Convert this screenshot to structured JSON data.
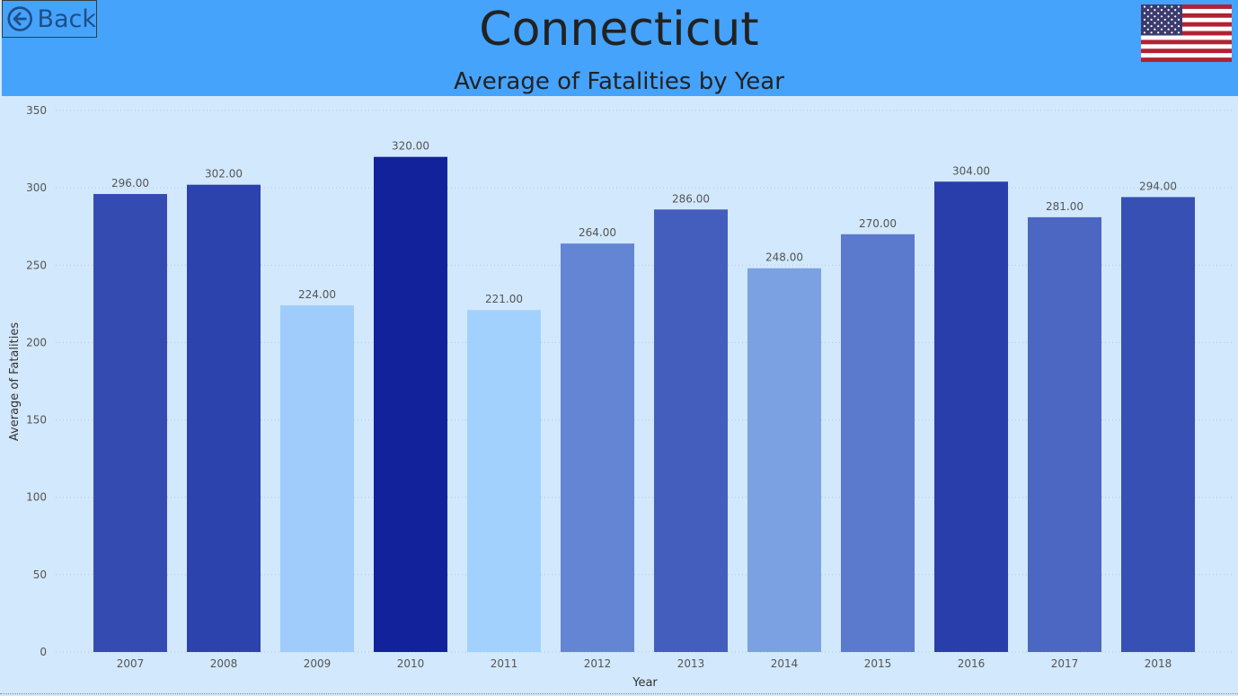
{
  "header": {
    "back_label": "Back",
    "title": "Connecticut",
    "flag_icon": "us-flag-icon",
    "back_icon": "arrow-left-circle-icon",
    "background_color": "#45a3fc"
  },
  "chart_data": {
    "type": "bar",
    "title": "Average of Fatalities by Year",
    "xlabel": "Year",
    "ylabel": "Average of Fatalities",
    "ylim": [
      0,
      350
    ],
    "yticks": [
      "0",
      "50",
      "100",
      "150",
      "200",
      "250",
      "300",
      "350"
    ],
    "grid": true,
    "categories": [
      "2007",
      "2008",
      "2009",
      "2010",
      "2011",
      "2012",
      "2013",
      "2014",
      "2015",
      "2016",
      "2017",
      "2018"
    ],
    "values": [
      296,
      302,
      224,
      320,
      221,
      264,
      286,
      248,
      270,
      304,
      281,
      294
    ],
    "value_labels": [
      "296.00",
      "302.00",
      "224.00",
      "320.00",
      "221.00",
      "264.00",
      "286.00",
      "248.00",
      "270.00",
      "304.00",
      "281.00",
      "294.00"
    ],
    "color_range": {
      "low": "#a3d1fe",
      "high": "#11229a"
    },
    "background": "#d2e8fc"
  }
}
